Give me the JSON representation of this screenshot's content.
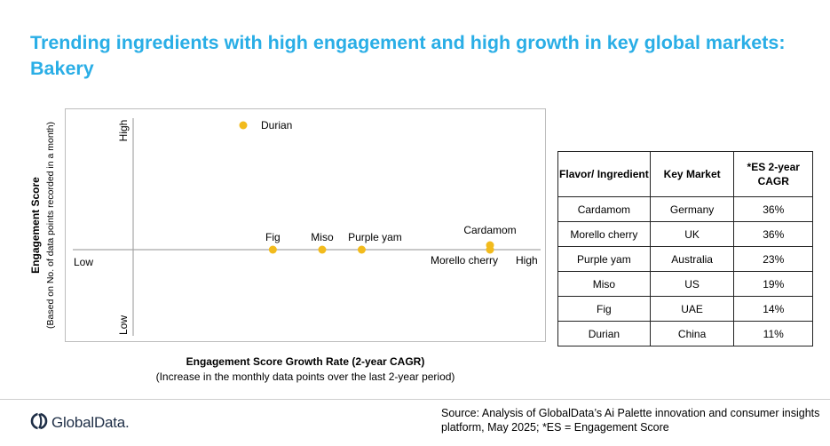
{
  "title": "Trending ingredients with high engagement and high growth in key global markets: Bakery",
  "chart_data": {
    "type": "scatter",
    "title": "",
    "xlabel": "Engagement Score Growth Rate (2-year CAGR)",
    "xlabel_sub": "(Increase in the monthly data points over the last 2-year period)",
    "ylabel": "Engagement Score",
    "ylabel_sub": "(Based on No. of data points recorded in a month)",
    "x_low_label": "Low",
    "x_high_label": "High",
    "y_high_label": "High",
    "y_low_label": "Low",
    "points": [
      {
        "label": "Durian",
        "x": 11,
        "y": "High"
      },
      {
        "label": "Fig",
        "x": 14,
        "y": "Mid"
      },
      {
        "label": "Miso",
        "x": 19,
        "y": "Mid"
      },
      {
        "label": "Purple yam",
        "x": 23,
        "y": "Mid"
      },
      {
        "label": "Cardamom",
        "x": 36,
        "y": "Mid"
      },
      {
        "label": "Morello cherry",
        "x": 36,
        "y": "Mid"
      }
    ],
    "point_color": "#f2bb1d",
    "axis_color": "#a6a6a6",
    "table": {
      "headers": [
        "Flavor/ Ingredient",
        "Key Market",
        "*ES 2-year CAGR"
      ],
      "rows": [
        [
          "Cardamom",
          "Germany",
          "36%"
        ],
        [
          "Morello cherry",
          "UK",
          "36%"
        ],
        [
          "Purple yam",
          "Australia",
          "23%"
        ],
        [
          "Miso",
          "US",
          "19%"
        ],
        [
          "Fig",
          "UAE",
          "14%"
        ],
        [
          "Durian",
          "China",
          "11%"
        ]
      ]
    }
  },
  "footer": {
    "logo_text": "GlobalData.",
    "logo_icon": "globaldata-logo-icon",
    "source": "Source: Analysis of GlobalData’s Ai Palette innovation and consumer insights platform, May 2025; *ES = Engagement Score"
  },
  "colors": {
    "title": "#2aaee6",
    "points": "#f2bb1d",
    "logo": "#1e2e46"
  }
}
